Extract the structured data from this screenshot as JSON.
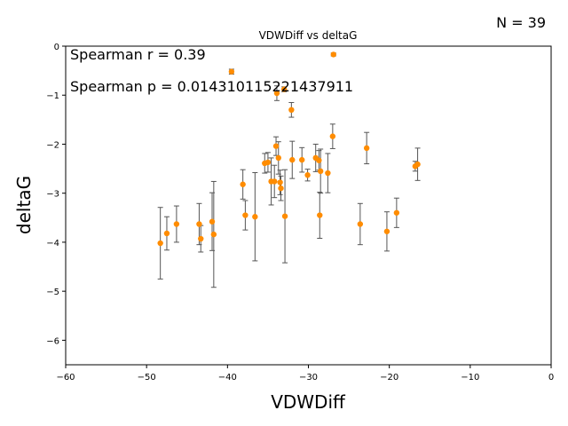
{
  "chart_data": {
    "type": "scatter",
    "title": "VDWDiff vs deltaG",
    "xlabel": "VDWDiff",
    "ylabel": "deltaG",
    "xlim": [
      -60,
      0
    ],
    "ylim": [
      -6.5,
      0
    ],
    "xticks": [
      -60,
      -50,
      -40,
      -30,
      -20,
      -10,
      0
    ],
    "yticks": [
      0,
      -1,
      -2,
      -3,
      -4,
      -5,
      -6
    ],
    "xtick_labels": [
      "−60",
      "−50",
      "−40",
      "−30",
      "−20",
      "−10",
      "0"
    ],
    "ytick_labels": [
      "0",
      "−1",
      "−2",
      "−3",
      "−4",
      "−5",
      "−6"
    ],
    "grid": false,
    "legend": "none",
    "marker_color": "#ff8c00",
    "errorbar_color": "#555555",
    "n_label": "N = 39",
    "annotations": [
      "Spearman r = 0.39",
      "Spearman p = 0.014310115221437911"
    ],
    "points": [
      {
        "x": -48.3,
        "y": -4.02,
        "yerr": 0.73
      },
      {
        "x": -47.5,
        "y": -3.82,
        "yerr": 0.34
      },
      {
        "x": -46.3,
        "y": -3.63,
        "yerr": 0.37
      },
      {
        "x": -43.5,
        "y": -3.63,
        "yerr": 0.42
      },
      {
        "x": -43.3,
        "y": -3.93,
        "yerr": 0.27
      },
      {
        "x": -41.9,
        "y": -3.58,
        "yerr": 0.59
      },
      {
        "x": -41.7,
        "y": -3.84,
        "yerr": 1.08
      },
      {
        "x": -39.5,
        "y": -0.52,
        "yerr": 0.05
      },
      {
        "x": -38.1,
        "y": -2.82,
        "yerr": 0.3
      },
      {
        "x": -37.8,
        "y": -3.45,
        "yerr": 0.3
      },
      {
        "x": -36.6,
        "y": -3.48,
        "yerr": 0.9
      },
      {
        "x": -35.4,
        "y": -2.39,
        "yerr": 0.2
      },
      {
        "x": -35.0,
        "y": -2.37,
        "yerr": 0.2
      },
      {
        "x": -34.6,
        "y": -2.76,
        "yerr": 0.48
      },
      {
        "x": -34.2,
        "y": -2.76,
        "yerr": 0.33
      },
      {
        "x": -34.0,
        "y": -2.04,
        "yerr": 0.19
      },
      {
        "x": -33.9,
        "y": -0.96,
        "yerr": 0.15
      },
      {
        "x": -33.7,
        "y": -2.28,
        "yerr": 0.33
      },
      {
        "x": -33.5,
        "y": -2.78,
        "yerr": 0.25
      },
      {
        "x": -33.4,
        "y": -2.9,
        "yerr": 0.25
      },
      {
        "x": -33.0,
        "y": -0.88,
        "yerr": 0.05
      },
      {
        "x": -32.9,
        "y": -3.47,
        "yerr": 0.95
      },
      {
        "x": -32.1,
        "y": -1.3,
        "yerr": 0.15
      },
      {
        "x": -32.0,
        "y": -2.32,
        "yerr": 0.38
      },
      {
        "x": -30.8,
        "y": -2.32,
        "yerr": 0.25
      },
      {
        "x": -30.1,
        "y": -2.63,
        "yerr": 0.12
      },
      {
        "x": -29.1,
        "y": -2.28,
        "yerr": 0.28
      },
      {
        "x": -28.7,
        "y": -2.33,
        "yerr": 0.2
      },
      {
        "x": -28.6,
        "y": -3.45,
        "yerr": 0.47
      },
      {
        "x": -28.5,
        "y": -2.55,
        "yerr": 0.45
      },
      {
        "x": -27.6,
        "y": -2.59,
        "yerr": 0.4
      },
      {
        "x": -27.0,
        "y": -1.84,
        "yerr": 0.25
      },
      {
        "x": -26.9,
        "y": -0.17,
        "yerr": 0.03
      },
      {
        "x": -23.6,
        "y": -3.63,
        "yerr": 0.42
      },
      {
        "x": -22.8,
        "y": -2.08,
        "yerr": 0.32
      },
      {
        "x": -20.3,
        "y": -3.78,
        "yerr": 0.4
      },
      {
        "x": -19.1,
        "y": -3.4,
        "yerr": 0.3
      },
      {
        "x": -16.8,
        "y": -2.45,
        "yerr": 0.1
      },
      {
        "x": -16.5,
        "y": -2.41,
        "yerr": 0.33
      }
    ]
  }
}
